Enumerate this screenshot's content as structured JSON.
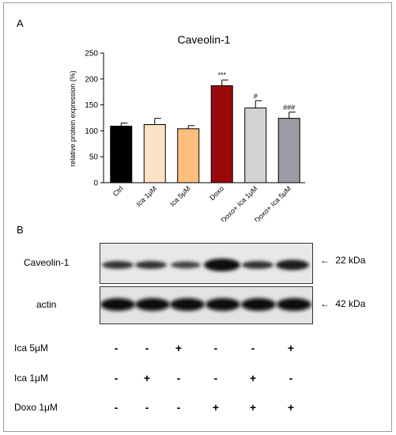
{
  "panel_a": {
    "label": "A"
  },
  "panel_b": {
    "label": "B"
  },
  "chart_data": {
    "type": "bar",
    "title": "Caveolin-1",
    "ylabel": "relative protein expression (%)",
    "xlabel": "",
    "categories": [
      "Ctrl",
      "Ica 1μM",
      "Ica 5μM",
      "Doxo",
      "Doxo+ Ica 1μM",
      "Doxo+ Ica 5μM"
    ],
    "values": [
      109,
      112,
      104,
      187,
      144,
      124
    ],
    "errors": [
      6,
      12,
      6,
      11,
      14,
      12
    ],
    "colors": [
      "#000000",
      "#fde3c6",
      "#fdbf7e",
      "#9b0a0a",
      "#d3d3d3",
      "#9b9ba6"
    ],
    "annotations": [
      "",
      "",
      "",
      "***",
      "#",
      "###"
    ],
    "ylim": [
      0,
      250
    ],
    "yticks": [
      0,
      50,
      100,
      150,
      200,
      250
    ],
    "grid": false
  },
  "blots": [
    {
      "name": "Caveolin-1",
      "marker": "22 kDa"
    },
    {
      "name": "actin",
      "marker": "42 kDa"
    }
  ],
  "treatments": [
    {
      "label": "Ica 5μM",
      "signs": [
        "-",
        "-",
        "+",
        "-",
        "-",
        "+"
      ]
    },
    {
      "label": "Ica 1μM",
      "signs": [
        "-",
        "+",
        "-",
        "-",
        "+",
        "-"
      ]
    },
    {
      "label": "Doxo 1μM",
      "signs": [
        "-",
        "-",
        "-",
        "+",
        "+",
        "+"
      ]
    }
  ]
}
